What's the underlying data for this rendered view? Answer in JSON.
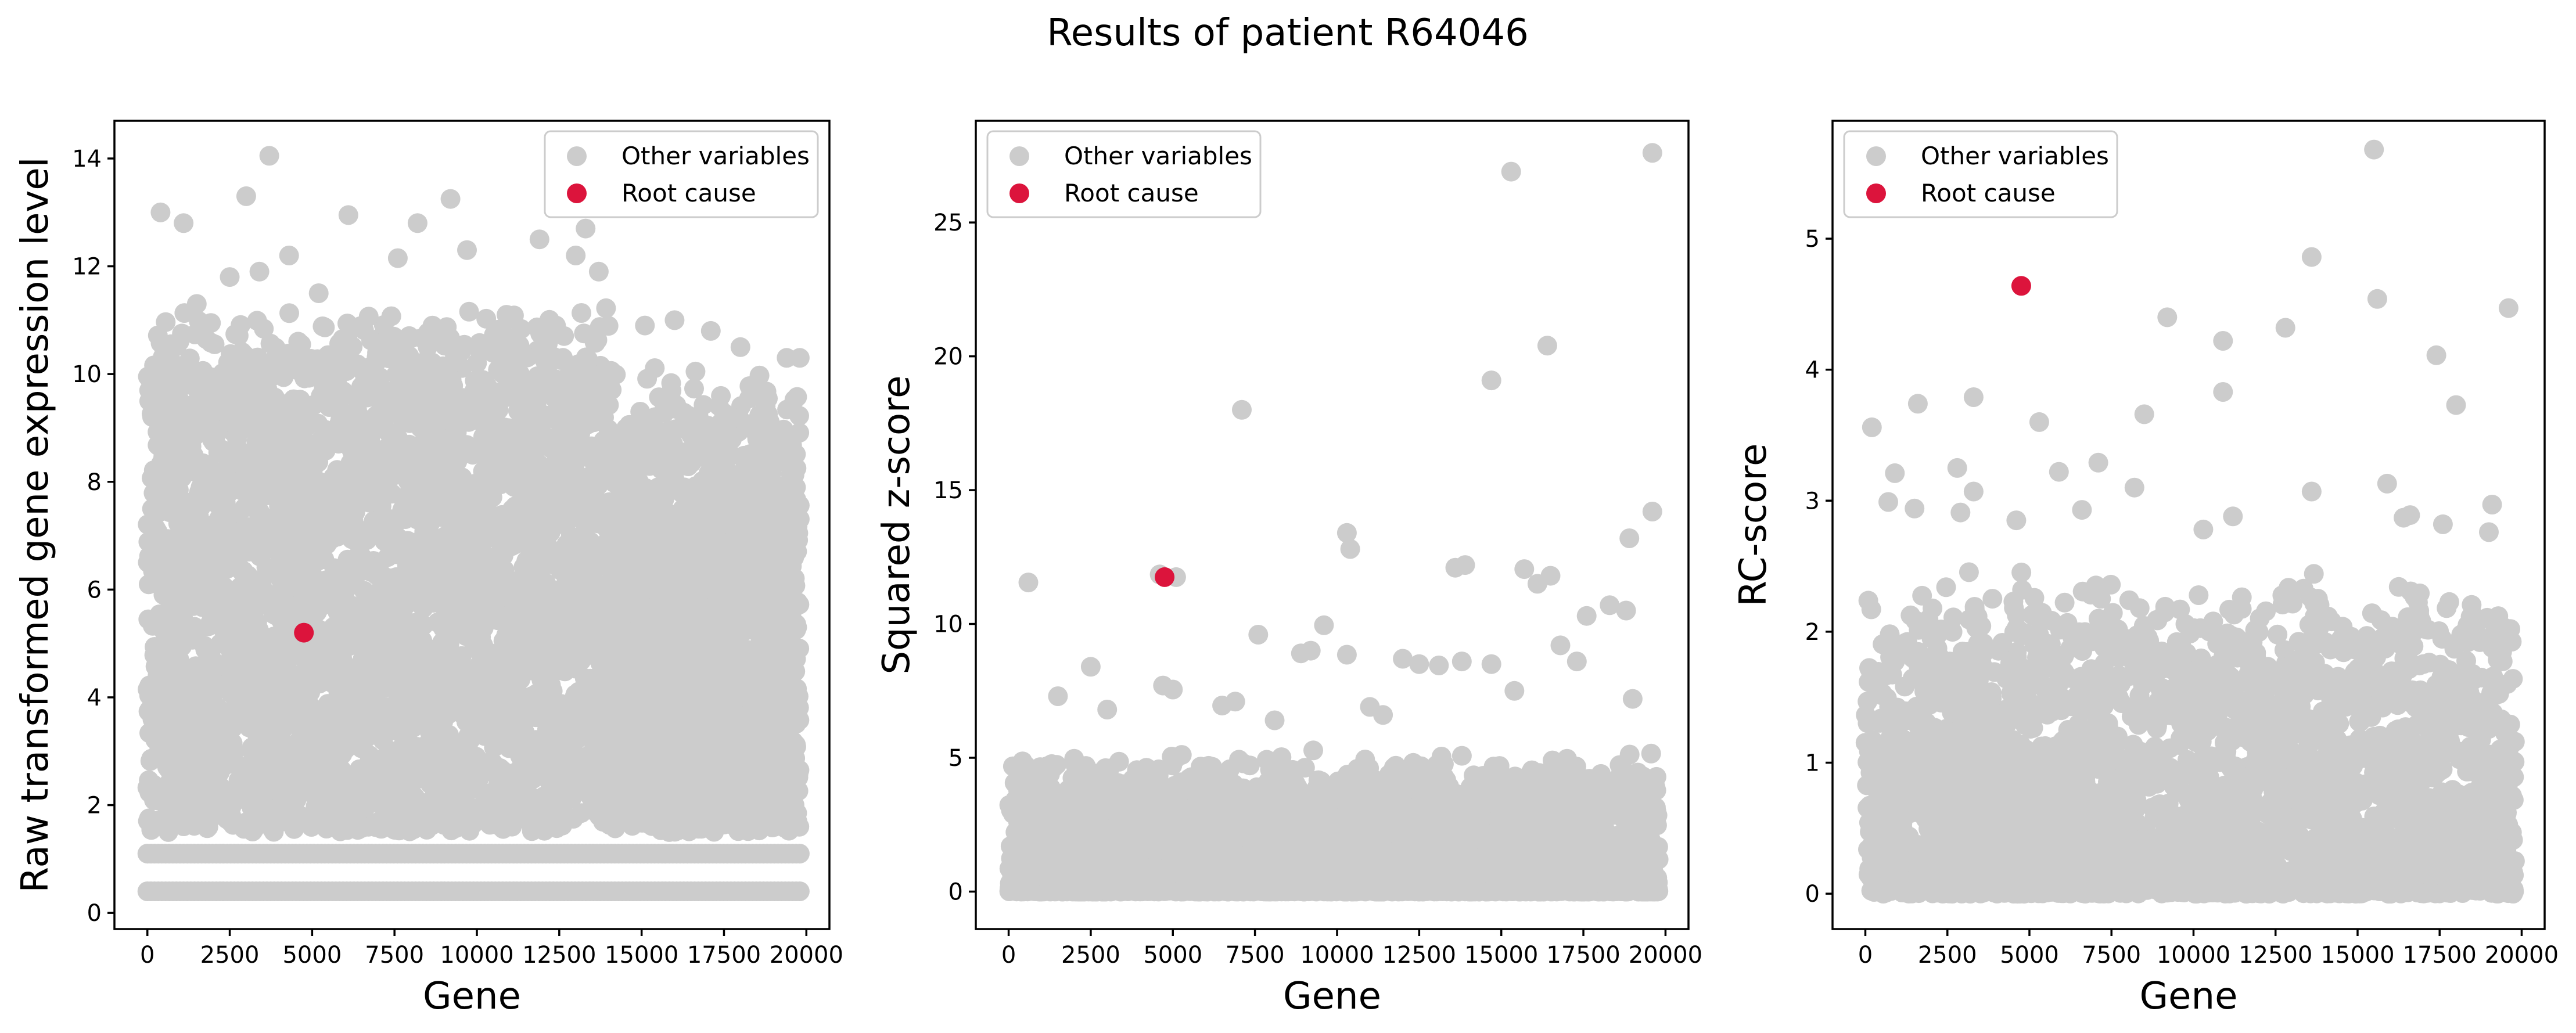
{
  "chart_data": {
    "title": "Results of patient R64046",
    "colors": {
      "other": "#cccccc",
      "root": "#dc143c"
    },
    "legend": {
      "other_label": "Other variables",
      "root_label": "Root cause"
    },
    "panels": [
      {
        "type": "scatter",
        "xlabel": "Gene",
        "ylabel": "Raw transformed gene expression level",
        "xlim": [
          -1000,
          20700
        ],
        "ylim": [
          -0.3,
          14.7
        ],
        "xticks": [
          0,
          2500,
          5000,
          7500,
          10000,
          12500,
          15000,
          17500,
          20000
        ],
        "yticks": [
          0,
          2,
          4,
          6,
          8,
          10,
          12,
          14
        ],
        "legend_position": "upper right",
        "root_cause": {
          "x": 4750,
          "y": 5.2
        },
        "highlights": [
          {
            "x": 3700,
            "y": 14.05
          },
          {
            "x": 400,
            "y": 13.0
          },
          {
            "x": 1100,
            "y": 12.8
          },
          {
            "x": 3000,
            "y": 13.3
          },
          {
            "x": 6100,
            "y": 12.95
          },
          {
            "x": 8200,
            "y": 12.8
          },
          {
            "x": 9200,
            "y": 13.25
          },
          {
            "x": 13300,
            "y": 12.7
          },
          {
            "x": 11900,
            "y": 12.5
          },
          {
            "x": 4300,
            "y": 12.2
          },
          {
            "x": 7600,
            "y": 12.15
          },
          {
            "x": 9700,
            "y": 12.3
          },
          {
            "x": 13000,
            "y": 12.2
          },
          {
            "x": 3400,
            "y": 11.9
          },
          {
            "x": 13700,
            "y": 11.9
          },
          {
            "x": 16000,
            "y": 11.0
          },
          {
            "x": 15100,
            "y": 10.9
          },
          {
            "x": 17100,
            "y": 10.8
          },
          {
            "x": 18000,
            "y": 10.5
          },
          {
            "x": 19400,
            "y": 10.3
          },
          {
            "x": 19800,
            "y": 10.3
          },
          {
            "x": 2500,
            "y": 11.8
          },
          {
            "x": 1500,
            "y": 11.3
          },
          {
            "x": 5200,
            "y": 11.5
          },
          {
            "x": 10900,
            "y": 11.1
          },
          {
            "x": 12400,
            "y": 10.9
          }
        ],
        "bands": [
          {
            "y": 0.4,
            "x_from": 0,
            "x_to": 19800
          },
          {
            "y": 1.1,
            "x_from": 0,
            "x_to": 19800
          }
        ],
        "cloud": [
          {
            "x_from": 0,
            "x_to": 14000,
            "y_min": 1.5,
            "y_max_low": 9.6,
            "y_max_high": 11.3,
            "n": 3400,
            "seed": 11
          },
          {
            "x_from": 14000,
            "x_to": 19800,
            "y_min": 1.5,
            "y_max_low": 7.3,
            "y_max_high": 10.2,
            "n": 1900,
            "seed": 12
          }
        ]
      },
      {
        "type": "scatter",
        "xlabel": "Gene",
        "ylabel": "Squared z-score",
        "xlim": [
          -1000,
          20700
        ],
        "ylim": [
          -1.4,
          28.8
        ],
        "xticks": [
          0,
          2500,
          5000,
          7500,
          10000,
          12500,
          15000,
          17500,
          20000
        ],
        "yticks": [
          0,
          5,
          10,
          15,
          20,
          25
        ],
        "legend_position": "upper left",
        "root_cause": {
          "x": 4750,
          "y": 11.75
        },
        "highlights": [
          {
            "x": 19600,
            "y": 27.6
          },
          {
            "x": 15300,
            "y": 26.9
          },
          {
            "x": 16400,
            "y": 20.4
          },
          {
            "x": 14700,
            "y": 19.1
          },
          {
            "x": 7100,
            "y": 18.0
          },
          {
            "x": 19600,
            "y": 14.2
          },
          {
            "x": 10300,
            "y": 13.4
          },
          {
            "x": 10400,
            "y": 12.8
          },
          {
            "x": 18900,
            "y": 13.2
          },
          {
            "x": 13600,
            "y": 12.1
          },
          {
            "x": 13900,
            "y": 12.2
          },
          {
            "x": 15700,
            "y": 12.05
          },
          {
            "x": 16500,
            "y": 11.8
          },
          {
            "x": 16100,
            "y": 11.5
          },
          {
            "x": 4600,
            "y": 11.85
          },
          {
            "x": 5100,
            "y": 11.75
          },
          {
            "x": 600,
            "y": 11.55
          },
          {
            "x": 17600,
            "y": 10.3
          },
          {
            "x": 18300,
            "y": 10.7
          },
          {
            "x": 18800,
            "y": 10.5
          },
          {
            "x": 9600,
            "y": 9.95
          },
          {
            "x": 7600,
            "y": 9.6
          },
          {
            "x": 8900,
            "y": 8.9
          },
          {
            "x": 9200,
            "y": 9.0
          },
          {
            "x": 2500,
            "y": 8.4
          },
          {
            "x": 10300,
            "y": 8.85
          },
          {
            "x": 12000,
            "y": 8.7
          },
          {
            "x": 12500,
            "y": 8.5
          },
          {
            "x": 13100,
            "y": 8.45
          },
          {
            "x": 13800,
            "y": 8.6
          },
          {
            "x": 14700,
            "y": 8.5
          },
          {
            "x": 16800,
            "y": 9.2
          },
          {
            "x": 17300,
            "y": 8.6
          },
          {
            "x": 4700,
            "y": 7.7
          },
          {
            "x": 5000,
            "y": 7.55
          },
          {
            "x": 1500,
            "y": 7.3
          },
          {
            "x": 15400,
            "y": 7.5
          },
          {
            "x": 19000,
            "y": 7.2
          },
          {
            "x": 6500,
            "y": 6.95
          },
          {
            "x": 6900,
            "y": 7.1
          },
          {
            "x": 11000,
            "y": 6.9
          },
          {
            "x": 11400,
            "y": 6.6
          },
          {
            "x": 3000,
            "y": 6.8
          },
          {
            "x": 8100,
            "y": 6.4
          }
        ],
        "bands": [],
        "cloud": [
          {
            "x_from": 0,
            "x_to": 19800,
            "y_min": 0,
            "y_max_low": 3.5,
            "y_max_high": 5.3,
            "n": 3400,
            "seed": 21,
            "power": 2.2
          }
        ]
      },
      {
        "type": "scatter",
        "xlabel": "Gene",
        "ylabel": "RC-score",
        "xlim": [
          -1000,
          20700
        ],
        "ylim": [
          -0.27,
          5.9
        ],
        "xticks": [
          0,
          2500,
          5000,
          7500,
          10000,
          12500,
          15000,
          17500,
          20000
        ],
        "yticks": [
          0,
          1,
          2,
          3,
          4,
          5
        ],
        "legend_position": "upper left",
        "root_cause": {
          "x": 4750,
          "y": 4.64
        },
        "highlights": [
          {
            "x": 15500,
            "y": 5.68
          },
          {
            "x": 13600,
            "y": 4.86
          },
          {
            "x": 15600,
            "y": 4.54
          },
          {
            "x": 19600,
            "y": 4.47
          },
          {
            "x": 9200,
            "y": 4.4
          },
          {
            "x": 12800,
            "y": 4.32
          },
          {
            "x": 10900,
            "y": 4.22
          },
          {
            "x": 17400,
            "y": 4.11
          },
          {
            "x": 10900,
            "y": 3.83
          },
          {
            "x": 3300,
            "y": 3.79
          },
          {
            "x": 1600,
            "y": 3.74
          },
          {
            "x": 18000,
            "y": 3.73
          },
          {
            "x": 8500,
            "y": 3.66
          },
          {
            "x": 5300,
            "y": 3.6
          },
          {
            "x": 200,
            "y": 3.56
          },
          {
            "x": 7100,
            "y": 3.29
          },
          {
            "x": 2800,
            "y": 3.25
          },
          {
            "x": 900,
            "y": 3.21
          },
          {
            "x": 5900,
            "y": 3.22
          },
          {
            "x": 15900,
            "y": 3.13
          },
          {
            "x": 8200,
            "y": 3.1
          },
          {
            "x": 13600,
            "y": 3.07
          },
          {
            "x": 3300,
            "y": 3.07
          },
          {
            "x": 700,
            "y": 2.99
          },
          {
            "x": 1500,
            "y": 2.94
          },
          {
            "x": 2900,
            "y": 2.91
          },
          {
            "x": 16600,
            "y": 2.89
          },
          {
            "x": 19100,
            "y": 2.97
          },
          {
            "x": 11200,
            "y": 2.88
          },
          {
            "x": 16400,
            "y": 2.87
          },
          {
            "x": 4600,
            "y": 2.85
          },
          {
            "x": 17600,
            "y": 2.82
          },
          {
            "x": 19000,
            "y": 2.76
          },
          {
            "x": 10300,
            "y": 2.78
          },
          {
            "x": 6600,
            "y": 2.93
          }
        ],
        "bands": [],
        "cloud": [
          {
            "x_from": 0,
            "x_to": 19800,
            "y_min": 0,
            "y_max_low": 1.6,
            "y_max_high": 2.5,
            "n": 3000,
            "seed": 31,
            "power": 1.6
          }
        ]
      }
    ]
  }
}
